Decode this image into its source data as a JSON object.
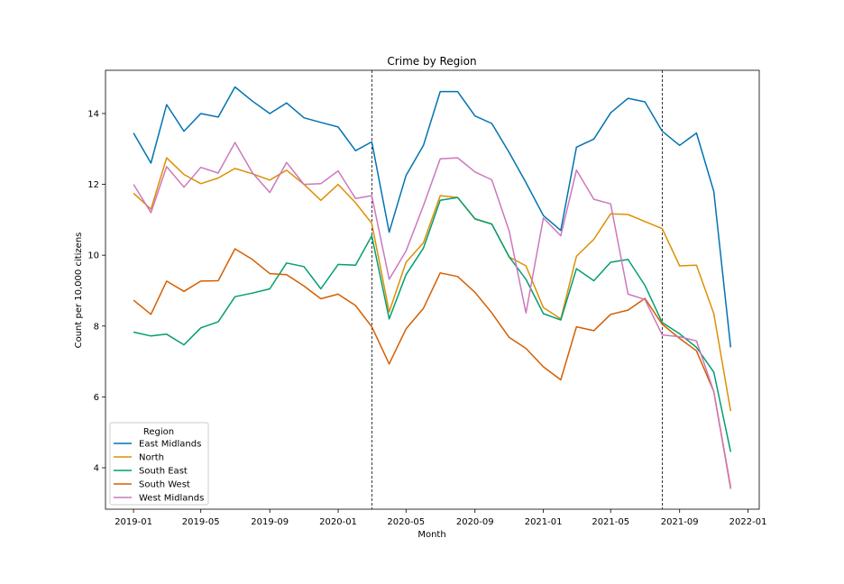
{
  "chart_data": {
    "type": "line",
    "title": "Crime by Region",
    "xlabel": "Month",
    "ylabel": "Count per 10,000 citizens",
    "x": [
      "2019-01",
      "2019-02",
      "2019-03",
      "2019-04",
      "2019-05",
      "2019-06",
      "2019-07",
      "2019-08",
      "2019-09",
      "2019-10",
      "2019-11",
      "2019-12",
      "2020-01",
      "2020-02",
      "2020-03",
      "2020-04",
      "2020-05",
      "2020-06",
      "2020-07",
      "2020-08",
      "2020-09",
      "2020-10",
      "2020-11",
      "2020-12",
      "2021-01",
      "2021-02",
      "2021-03",
      "2021-04",
      "2021-05",
      "2021-06",
      "2021-07",
      "2021-08",
      "2021-09",
      "2021-10",
      "2021-11",
      "2021-12"
    ],
    "xlim": [
      "2018-11-12",
      "2022-01-21"
    ],
    "ylim": [
      2.83,
      15.22
    ],
    "x_ticks": [
      {
        "date": "2019-01-01",
        "label": "2019-01"
      },
      {
        "date": "2019-05-01",
        "label": "2019-05"
      },
      {
        "date": "2019-09-01",
        "label": "2019-09"
      },
      {
        "date": "2020-01-01",
        "label": "2020-01"
      },
      {
        "date": "2020-05-01",
        "label": "2020-05"
      },
      {
        "date": "2020-09-01",
        "label": "2020-09"
      },
      {
        "date": "2021-01-01",
        "label": "2021-01"
      },
      {
        "date": "2021-05-01",
        "label": "2021-05"
      },
      {
        "date": "2021-09-01",
        "label": "2021-09"
      },
      {
        "date": "2022-01-01",
        "label": "2022-01"
      }
    ],
    "y_ticks": [
      4,
      6,
      8,
      10,
      12,
      14
    ],
    "vlines": [
      "2020-03-01",
      "2021-08-01"
    ],
    "grid": false,
    "legend": {
      "title": "Region",
      "position": "lower-left"
    },
    "series": [
      {
        "name": "East Midlands",
        "color": "#0173b2",
        "values": [
          13.45,
          12.6,
          14.25,
          13.5,
          14.0,
          13.9,
          14.75,
          14.35,
          14.0,
          14.3,
          13.88,
          13.75,
          13.62,
          12.95,
          13.2,
          10.65,
          12.25,
          13.1,
          14.62,
          14.62,
          13.93,
          13.72,
          12.9,
          12.05,
          11.12,
          10.7,
          13.05,
          13.28,
          14.02,
          14.43,
          14.33,
          13.5,
          13.1,
          13.45,
          11.8,
          7.4
        ]
      },
      {
        "name": "North",
        "color": "#de8f05",
        "values": [
          11.75,
          11.3,
          12.75,
          12.28,
          12.02,
          12.18,
          12.45,
          12.3,
          12.12,
          12.4,
          12.0,
          11.55,
          12.0,
          11.48,
          10.9,
          8.4,
          9.8,
          10.35,
          11.68,
          11.63,
          11.02,
          10.88,
          9.95,
          9.7,
          8.52,
          8.2,
          9.97,
          10.45,
          11.17,
          11.15,
          10.95,
          10.75,
          9.7,
          9.72,
          8.35,
          5.6
        ]
      },
      {
        "name": "South East",
        "color": "#029e73",
        "values": [
          7.83,
          7.72,
          7.77,
          7.47,
          7.95,
          8.12,
          8.83,
          8.93,
          9.05,
          9.78,
          9.68,
          9.05,
          9.74,
          9.72,
          10.55,
          8.2,
          9.45,
          10.2,
          11.55,
          11.63,
          11.03,
          10.88,
          9.95,
          9.32,
          8.35,
          8.17,
          9.62,
          9.28,
          9.8,
          9.88,
          9.15,
          8.1,
          7.78,
          7.4,
          6.7,
          4.45
        ]
      },
      {
        "name": "South West",
        "color": "#d55e00",
        "values": [
          8.73,
          8.33,
          9.27,
          8.98,
          9.27,
          9.28,
          10.18,
          9.88,
          9.48,
          9.45,
          9.13,
          8.77,
          8.9,
          8.58,
          7.98,
          6.93,
          7.92,
          8.5,
          9.5,
          9.4,
          8.95,
          8.37,
          7.68,
          7.37,
          6.85,
          6.48,
          7.98,
          7.87,
          8.33,
          8.45,
          8.78,
          8.05,
          7.65,
          7.3,
          6.15,
          3.45
        ]
      },
      {
        "name": "West Midlands",
        "color": "#cc78bc",
        "values": [
          12.0,
          11.2,
          12.5,
          11.92,
          12.48,
          12.32,
          13.18,
          12.33,
          11.77,
          12.62,
          12.0,
          12.02,
          12.38,
          11.6,
          11.68,
          9.32,
          10.12,
          11.4,
          12.72,
          12.75,
          12.35,
          12.13,
          10.68,
          8.37,
          11.05,
          10.55,
          12.4,
          11.58,
          11.45,
          8.9,
          8.75,
          7.75,
          7.7,
          7.58,
          6.15,
          3.4
        ]
      }
    ]
  }
}
